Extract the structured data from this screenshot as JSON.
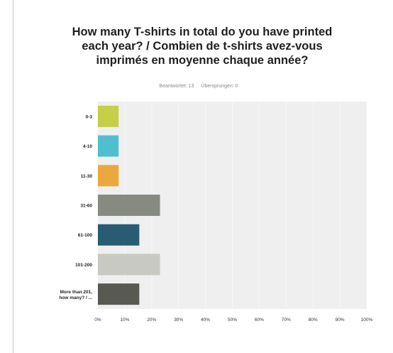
{
  "chart_data": {
    "type": "bar",
    "orientation": "horizontal",
    "title": "How many T-shirts in total do you have printed each year? / Combien de t-shirts avez-vous imprimés en moyenne chaque année?",
    "answered_text": "Beantwortet: 13",
    "skipped_text": "Übersprungen: 0",
    "categories": [
      "0-3",
      "4-10",
      "11-30",
      "31-60",
      "61-100",
      "101-200",
      "More than 201, how many? / ..."
    ],
    "values": [
      7.7,
      7.7,
      7.7,
      23.1,
      15.4,
      23.1,
      15.4
    ],
    "bar_colors": [
      "#c5cf47",
      "#4fbfcf",
      "#eba83c",
      "#878a80",
      "#285c72",
      "#c8c9c2",
      "#585a52"
    ],
    "xlim": [
      0,
      100
    ],
    "xticks": [
      "0%",
      "10%",
      "20%",
      "30%",
      "40%",
      "50%",
      "60%",
      "70%",
      "80%",
      "90%",
      "100%"
    ],
    "plot_background": "#efefef",
    "grid": true
  }
}
